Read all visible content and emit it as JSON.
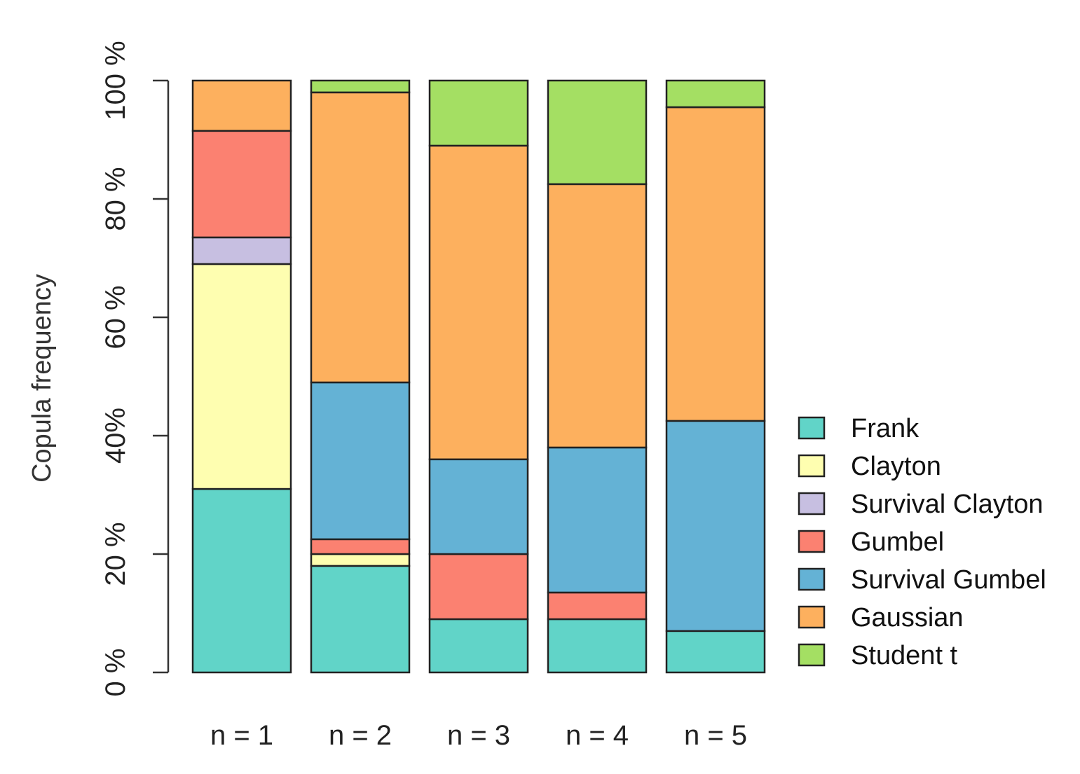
{
  "chart_data": {
    "type": "bar",
    "stacked": true,
    "categories": [
      "n = 1",
      "n = 2",
      "n = 3",
      "n = 4",
      "n = 5"
    ],
    "series": [
      {
        "name": "Frank",
        "color": "#61d4c8",
        "values": [
          31,
          18,
          9,
          9,
          7
        ]
      },
      {
        "name": "Clayton",
        "color": "#fefeb0",
        "values": [
          38,
          2,
          0,
          0,
          0
        ]
      },
      {
        "name": "Survival Clayton",
        "color": "#c7bfe1",
        "values": [
          4.5,
          0,
          0,
          0,
          0
        ]
      },
      {
        "name": "Gumbel",
        "color": "#fb8171",
        "values": [
          18,
          2.5,
          11,
          4.5,
          0
        ]
      },
      {
        "name": "Survival Gumbel",
        "color": "#64b2d5",
        "values": [
          0,
          26.5,
          16,
          24.5,
          35.5
        ]
      },
      {
        "name": "Gaussian",
        "color": "#fdb05e",
        "values": [
          8.5,
          49,
          53,
          44.5,
          53
        ]
      },
      {
        "name": "Student t",
        "color": "#a4df63",
        "values": [
          0,
          2,
          11,
          17.5,
          4.5
        ]
      }
    ],
    "ylabel": "Copula frequency",
    "xlabel": "",
    "ylim": [
      0,
      100
    ],
    "yticks": [
      {
        "value": 0,
        "label": "0 %"
      },
      {
        "value": 20,
        "label": "20 %"
      },
      {
        "value": 40,
        "label": "40%"
      },
      {
        "value": 60,
        "label": "60 %"
      },
      {
        "value": 80,
        "label": "80 %"
      },
      {
        "value": 100,
        "label": "100 %"
      }
    ],
    "legend_position": "right"
  }
}
